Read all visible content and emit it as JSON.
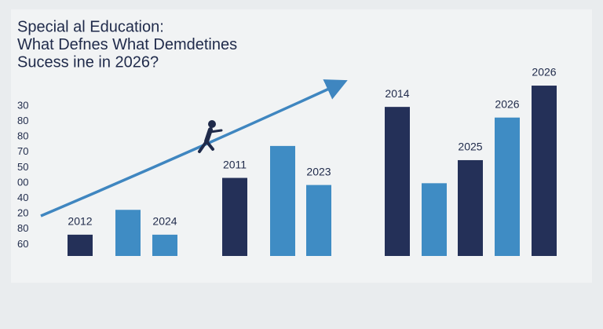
{
  "chart_data": {
    "type": "bar",
    "title_lines": [
      "Special al Education:",
      "What Defnes What Demdetines",
      "Sucess ine in 2026?"
    ],
    "axis_labels": [
      "30",
      "80",
      "80",
      "70",
      "50",
      "00",
      "40",
      "20",
      "80",
      "60"
    ],
    "categories": [
      "2012",
      null,
      "2024",
      "2011",
      null,
      "2023",
      "2014",
      null,
      "2025",
      "2026",
      "2026"
    ],
    "values": [
      12,
      26,
      12,
      44,
      62,
      40,
      84,
      41,
      54,
      78,
      96
    ],
    "colors": [
      "#243058",
      "#3f8cc4",
      "#3f8cc4",
      "#243058",
      "#3f8cc4",
      "#3f8cc4",
      "#243058",
      "#3f8cc4",
      "#243058",
      "#3f8cc4",
      "#243058"
    ],
    "ylim": [
      0,
      100
    ]
  }
}
